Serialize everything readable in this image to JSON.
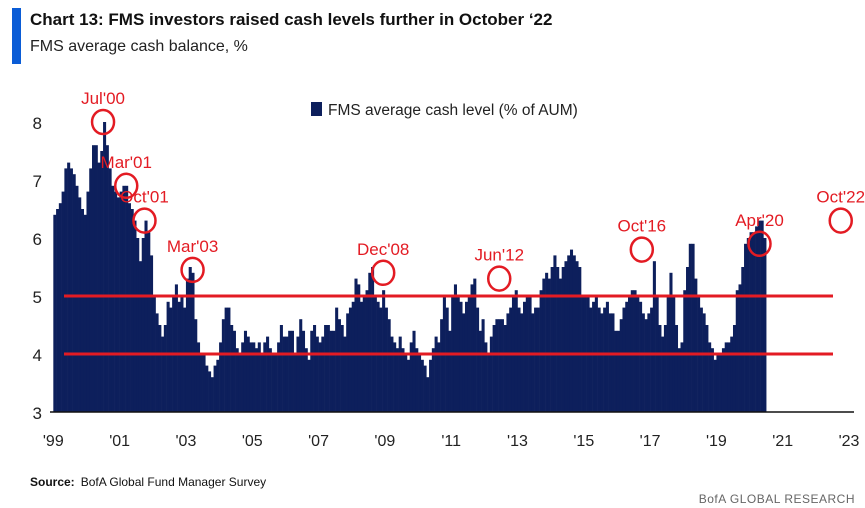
{
  "header": {
    "title": "Chart 13: FMS investors raised cash levels further in October ‘22",
    "subtitle": "FMS average cash balance, %"
  },
  "footer": {
    "source_label": "Source:",
    "source_text": "BofA Global Fund Manager Survey",
    "brand": "BofA GLOBAL RESEARCH"
  },
  "colors": {
    "bar": "#0d1f5c",
    "annotation": "#e31b23",
    "accent": "#0a5cd6"
  },
  "chart_data": {
    "type": "bar",
    "legend": {
      "label": "FMS average cash level (% of AUM)",
      "placement": "top-center"
    },
    "ylim": [
      3,
      8
    ],
    "yticks": [
      3,
      4,
      5,
      6,
      7,
      8
    ],
    "xlim": [
      1998.9,
      2023.15
    ],
    "xticks": [
      {
        "label": "'99",
        "x": 1999
      },
      {
        "label": "'01",
        "x": 2001
      },
      {
        "label": "'03",
        "x": 2003
      },
      {
        "label": "'05",
        "x": 2005
      },
      {
        "label": "'07",
        "x": 2007
      },
      {
        "label": "'09",
        "x": 2009
      },
      {
        "label": "'11",
        "x": 2011
      },
      {
        "label": "'13",
        "x": 2013
      },
      {
        "label": "'15",
        "x": 2015
      },
      {
        "label": "'17",
        "x": 2017
      },
      {
        "label": "'19",
        "x": 2019
      },
      {
        "label": "'21",
        "x": 2021
      },
      {
        "label": "'23",
        "x": 2023
      }
    ],
    "reference_lines": [
      4.0,
      5.0
    ],
    "annotations": [
      {
        "label": "Jul'00",
        "x": 2000.5,
        "y": 8.0
      },
      {
        "label": "Mar'01",
        "x": 2001.2,
        "y": 6.9
      },
      {
        "label": "Oct'01",
        "x": 2001.75,
        "y": 6.3
      },
      {
        "label": "Mar'03",
        "x": 2003.2,
        "y": 5.45
      },
      {
        "label": "Dec'08",
        "x": 2008.95,
        "y": 5.4
      },
      {
        "label": "Jun'12",
        "x": 2012.45,
        "y": 5.3
      },
      {
        "label": "Oct'16",
        "x": 2016.75,
        "y": 5.8
      },
      {
        "label": "Apr'20",
        "x": 2020.3,
        "y": 5.9
      },
      {
        "label": "Oct'22",
        "x": 2022.75,
        "y": 6.3
      }
    ],
    "series": [
      {
        "start": 1999.0,
        "step": 0.0833333,
        "values": [
          6.4,
          6.5,
          6.6,
          6.8,
          7.2,
          7.3,
          7.2,
          7.1,
          6.9,
          6.7,
          6.5,
          6.4,
          6.8,
          7.2,
          7.6,
          7.6,
          7.3,
          7.5,
          8.0,
          7.6,
          7.2,
          6.9,
          6.8,
          6.7,
          6.8,
          6.9,
          6.9,
          6.6,
          6.5,
          6.3,
          6.0,
          5.6,
          6.0,
          6.3,
          6.1,
          5.7,
          5.0,
          4.7,
          4.5,
          4.3,
          4.5,
          4.9,
          4.8,
          5.0,
          5.2,
          4.9,
          5.0,
          4.8,
          5.3,
          5.5,
          5.4,
          4.6,
          4.2,
          4.0,
          4.0,
          3.8,
          3.7,
          3.6,
          3.8,
          3.9,
          4.2,
          4.6,
          4.8,
          4.8,
          4.5,
          4.4,
          4.1,
          4.0,
          4.2,
          4.4,
          4.3,
          4.2,
          4.2,
          4.1,
          4.2,
          4.0,
          4.2,
          4.3,
          4.1,
          4.0,
          4.0,
          4.2,
          4.5,
          4.3,
          4.3,
          4.4,
          4.4,
          4.0,
          4.3,
          4.6,
          4.4,
          4.1,
          3.9,
          4.4,
          4.5,
          4.3,
          4.2,
          4.3,
          4.5,
          4.5,
          4.4,
          4.4,
          4.8,
          4.6,
          4.5,
          4.3,
          4.7,
          4.8,
          4.9,
          5.3,
          5.2,
          4.9,
          5.0,
          5.1,
          5.4,
          5.5,
          5.0,
          4.9,
          4.8,
          5.1,
          4.8,
          4.6,
          4.3,
          4.2,
          4.1,
          4.3,
          4.1,
          4.0,
          3.9,
          4.2,
          4.4,
          4.1,
          4.0,
          3.9,
          3.8,
          3.6,
          3.9,
          4.1,
          4.3,
          4.2,
          4.6,
          5.0,
          4.8,
          4.4,
          5.0,
          5.2,
          5.0,
          4.9,
          4.7,
          4.9,
          5.0,
          5.2,
          5.3,
          4.8,
          4.4,
          4.6,
          4.2,
          4.0,
          4.3,
          4.5,
          4.6,
          4.6,
          4.6,
          4.5,
          4.7,
          4.8,
          5.0,
          5.1,
          4.8,
          4.7,
          4.9,
          5.0,
          5.0,
          4.7,
          4.8,
          4.8,
          5.1,
          5.3,
          5.4,
          5.3,
          5.5,
          5.7,
          5.5,
          5.3,
          5.5,
          5.6,
          5.7,
          5.8,
          5.7,
          5.6,
          5.5,
          5.0,
          5.0,
          5.0,
          4.8,
          4.9,
          5.0,
          4.8,
          4.7,
          4.8,
          4.9,
          4.7,
          4.7,
          4.4,
          4.4,
          4.6,
          4.8,
          4.9,
          5.0,
          5.1,
          5.1,
          5.0,
          4.9,
          4.7,
          4.6,
          4.7,
          4.8,
          5.6,
          5.0,
          4.5,
          4.3,
          4.5,
          5.0,
          5.4,
          5.0,
          4.5,
          4.1,
          4.2,
          5.1,
          5.5,
          5.9,
          5.9,
          5.3,
          5.0,
          4.8,
          4.7,
          4.5,
          4.2,
          4.1,
          3.9,
          4.0,
          4.0,
          4.1,
          4.2,
          4.2,
          4.3,
          4.5,
          5.1,
          5.2,
          5.5,
          5.9,
          6.0,
          6.1,
          6.1,
          6.2,
          6.3,
          6.3,
          6.0
        ]
      }
    ]
  }
}
